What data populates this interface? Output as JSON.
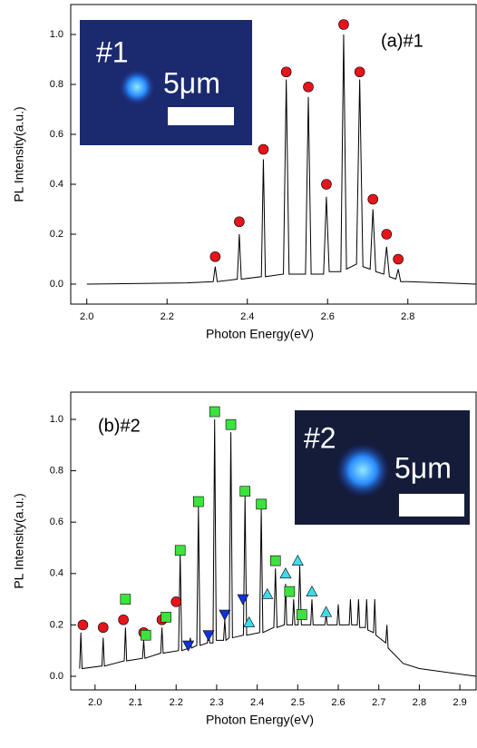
{
  "chart_data": [
    {
      "type": "line",
      "annotation": "(a)#1",
      "xlabel": "Photon Energy(eV)",
      "ylabel": "PL Intensity(a.u.)",
      "inset": {
        "label": "#1",
        "scale_label": "5μm"
      },
      "xlim": [
        1.96,
        2.97
      ],
      "ylim": [
        -0.08,
        1.12
      ],
      "xticks": [
        {
          "value": 2.0,
          "label": "2.0"
        },
        2.2,
        2.4,
        2.6,
        2.8
      ],
      "yticks": [
        {
          "value": 0,
          "label": "0.0"
        },
        0.2,
        0.4,
        0.6,
        0.8,
        {
          "value": 1.0,
          "label": "1.0"
        }
      ],
      "series": [
        {
          "type": "line",
          "color": "#000000",
          "x": [
            2.0,
            2.25,
            2.315,
            2.32,
            2.325,
            2.375,
            2.38,
            2.385,
            2.435,
            2.44,
            2.445,
            2.49,
            2.497,
            2.504,
            2.545,
            2.552,
            2.559,
            2.59,
            2.597,
            2.604,
            2.633,
            2.64,
            2.647,
            2.672,
            2.68,
            2.688,
            2.706,
            2.713,
            2.72,
            2.74,
            2.747,
            2.754,
            2.77,
            2.776,
            2.782,
            2.8,
            2.97
          ],
          "values": [
            0,
            0.005,
            0.01,
            0.07,
            0.01,
            0.02,
            0.2,
            0.02,
            0.03,
            0.5,
            0.03,
            0.04,
            0.82,
            0.04,
            0.04,
            0.75,
            0.04,
            0.04,
            0.35,
            0.05,
            0.05,
            1.0,
            0.06,
            0.08,
            0.82,
            0.07,
            0.06,
            0.3,
            0.05,
            0.04,
            0.15,
            0.03,
            0.02,
            0.06,
            0.01,
            0.01,
            0.0
          ]
        },
        {
          "type": "scatter",
          "marker": "circle",
          "color": "#e8141c",
          "x": [
            2.32,
            2.38,
            2.44,
            2.497,
            2.552,
            2.597,
            2.64,
            2.68,
            2.713,
            2.747,
            2.776
          ],
          "values": [
            0.11,
            0.25,
            0.54,
            0.85,
            0.79,
            0.4,
            1.04,
            0.85,
            0.34,
            0.2,
            0.1
          ]
        }
      ]
    },
    {
      "type": "line",
      "annotation": "(b)#2",
      "xlabel": "Photon Energy(eV)",
      "ylabel": "PL Intensity(a.u.)",
      "inset": {
        "label": "#2",
        "scale_label": "5μm"
      },
      "xlim": [
        1.94,
        2.94
      ],
      "ylim": [
        -0.053,
        1.106
      ],
      "xticks": [
        {
          "value": 2.0,
          "label": "2.0"
        },
        2.1,
        2.2,
        2.3,
        2.4,
        2.5,
        2.6,
        2.7,
        2.8,
        2.9
      ],
      "yticks": [
        {
          "value": 0,
          "label": "0.0"
        },
        0.2,
        0.4,
        0.6,
        0.8,
        {
          "value": 1.0,
          "label": "1.0"
        }
      ],
      "series": [
        {
          "type": "line",
          "color": "#000000",
          "x": [
            1.962,
            1.965,
            1.968,
            2.017,
            2.02,
            2.023,
            2.072,
            2.075,
            2.078,
            2.117,
            2.12,
            2.123,
            2.162,
            2.165,
            2.168,
            2.206,
            2.21,
            2.214,
            2.232,
            2.235,
            2.238,
            2.251,
            2.255,
            2.259,
            2.277,
            2.28,
            2.283,
            2.291,
            2.295,
            2.299,
            2.317,
            2.32,
            2.323,
            2.331,
            2.335,
            2.339,
            2.366,
            2.37,
            2.374,
            2.406,
            2.41,
            2.414,
            2.441,
            2.445,
            2.449,
            2.467,
            2.47,
            2.473,
            2.487,
            2.49,
            2.493,
            2.501,
            2.505,
            2.509,
            2.532,
            2.535,
            2.538,
            2.567,
            2.57,
            2.573,
            2.597,
            2.6,
            2.603,
            2.627,
            2.63,
            2.633,
            2.647,
            2.65,
            2.653,
            2.667,
            2.67,
            2.673,
            2.687,
            2.69,
            2.693,
            2.717,
            2.72,
            2.723,
            2.76,
            2.8,
            2.94
          ],
          "values": [
            0.03,
            0.17,
            0.03,
            0.04,
            0.15,
            0.04,
            0.06,
            0.19,
            0.06,
            0.07,
            0.14,
            0.07,
            0.09,
            0.19,
            0.09,
            0.1,
            0.48,
            0.1,
            0.11,
            0.15,
            0.11,
            0.12,
            0.66,
            0.12,
            0.13,
            0.17,
            0.13,
            0.13,
            1.0,
            0.14,
            0.14,
            0.22,
            0.14,
            0.15,
            0.95,
            0.15,
            0.16,
            0.7,
            0.16,
            0.17,
            0.65,
            0.17,
            0.19,
            0.42,
            0.19,
            0.2,
            0.36,
            0.2,
            0.2,
            0.3,
            0.2,
            0.2,
            0.43,
            0.2,
            0.2,
            0.3,
            0.2,
            0.2,
            0.24,
            0.2,
            0.2,
            0.28,
            0.2,
            0.2,
            0.3,
            0.2,
            0.2,
            0.3,
            0.19,
            0.19,
            0.3,
            0.18,
            0.17,
            0.3,
            0.16,
            0.13,
            0.2,
            0.11,
            0.05,
            0.03,
            0.0
          ]
        },
        {
          "type": "scatter",
          "marker": "circle",
          "color": "#e8141c",
          "x": [
            1.97,
            2.02,
            2.07,
            2.12,
            2.165,
            2.2
          ],
          "values": [
            0.2,
            0.19,
            0.22,
            0.17,
            0.22,
            0.29
          ]
        },
        {
          "type": "scatter",
          "marker": "square",
          "color": "#3de33d",
          "x": [
            2.075,
            2.125,
            2.175,
            2.21,
            2.255,
            2.295,
            2.335,
            2.37,
            2.41,
            2.445,
            2.48,
            2.51
          ],
          "values": [
            0.3,
            0.16,
            0.23,
            0.49,
            0.68,
            1.03,
            0.98,
            0.72,
            0.67,
            0.45,
            0.33,
            0.24
          ]
        },
        {
          "type": "scatter",
          "marker": "triangle-down",
          "color": "#1232d8",
          "x": [
            2.23,
            2.28,
            2.32,
            2.365
          ],
          "values": [
            0.12,
            0.16,
            0.24,
            0.3
          ]
        },
        {
          "type": "scatter",
          "marker": "triangle-up",
          "color": "#3ddcea",
          "x": [
            2.38,
            2.425,
            2.47,
            2.5,
            2.535,
            2.57
          ],
          "values": [
            0.21,
            0.32,
            0.4,
            0.45,
            0.33,
            0.25
          ]
        }
      ]
    }
  ]
}
